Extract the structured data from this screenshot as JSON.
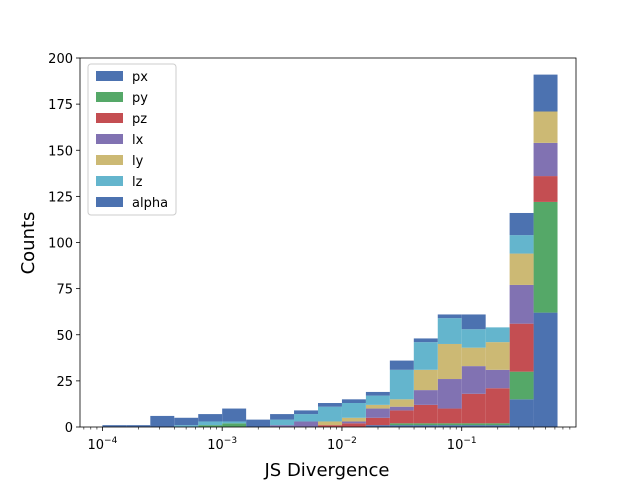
{
  "chart_data": {
    "type": "bar",
    "stacked": true,
    "title": "",
    "xlabel": "JS Divergence",
    "ylabel": "Counts",
    "xscale": "log",
    "xlim": [
      6.5e-05,
      0.9
    ],
    "ylim": [
      0,
      200
    ],
    "xticks": [
      {
        "value": 0.0001,
        "base": "10",
        "exp": "−4"
      },
      {
        "value": 0.001,
        "base": "10",
        "exp": "−3"
      },
      {
        "value": 0.01,
        "base": "10",
        "exp": "−2"
      },
      {
        "value": 0.1,
        "base": "10",
        "exp": "−1"
      }
    ],
    "yticks": [
      "0",
      "25",
      "50",
      "75",
      "100",
      "125",
      "150",
      "175",
      "200"
    ],
    "grid": false,
    "legend_position": "top-left",
    "bin_edges": [
      0.0001,
      0.0001585,
      0.0002512,
      0.0003981,
      0.000631,
      0.001,
      0.001585,
      0.002512,
      0.003981,
      0.00631,
      0.01,
      0.01585,
      0.02512,
      0.03981,
      0.0631,
      0.1,
      0.1585,
      0.2512,
      0.3981,
      0.631
    ],
    "series": [
      {
        "name": "px",
        "color": "#4C72B0",
        "values": [
          1,
          1,
          0,
          0,
          0,
          0,
          0,
          0,
          0,
          0,
          0,
          1,
          1,
          1,
          1,
          1,
          1,
          15,
          62
        ]
      },
      {
        "name": "py",
        "color": "#55A868",
        "values": [
          0,
          0,
          0,
          0,
          1,
          2,
          0,
          0,
          0,
          0,
          0,
          0,
          1,
          1,
          1,
          1,
          1,
          15,
          60
        ]
      },
      {
        "name": "pz",
        "color": "#C44E52",
        "values": [
          0,
          0,
          0,
          0,
          0,
          0,
          0,
          0,
          0,
          1,
          2,
          4,
          7,
          10,
          8,
          16,
          19,
          26,
          14
        ]
      },
      {
        "name": "lx",
        "color": "#8172B2",
        "values": [
          0,
          0,
          0,
          0,
          0,
          0,
          0,
          1,
          3,
          0,
          1,
          5,
          2,
          8,
          16,
          15,
          10,
          21,
          18
        ]
      },
      {
        "name": "ly",
        "color": "#CCB974",
        "values": [
          0,
          0,
          0,
          0,
          0,
          0,
          0,
          0,
          0,
          2,
          2,
          2,
          4,
          11,
          19,
          10,
          15,
          17,
          17
        ]
      },
      {
        "name": "lz",
        "color": "#64B5CD",
        "values": [
          0,
          0,
          0,
          1,
          2,
          1,
          0,
          3,
          4,
          8,
          8,
          5,
          16,
          15,
          14,
          10,
          8,
          10,
          0
        ]
      },
      {
        "name": "alpha",
        "color": "#4C72B0",
        "values": [
          0,
          0,
          6,
          4,
          4,
          7,
          4,
          3,
          2,
          2,
          2,
          2,
          5,
          2,
          2,
          8,
          0,
          12,
          20
        ]
      }
    ]
  }
}
